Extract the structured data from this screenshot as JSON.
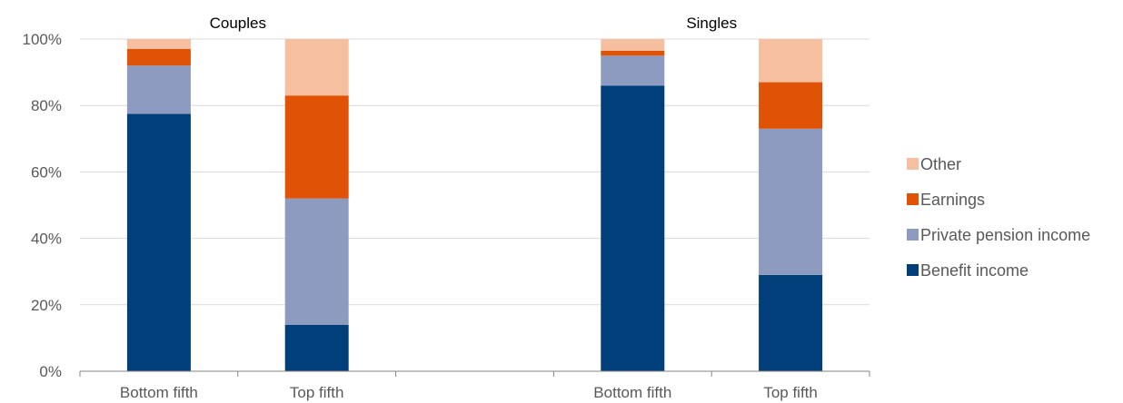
{
  "chart_data": {
    "type": "bar",
    "stacked": true,
    "panels": [
      {
        "title": "Couples",
        "categories": [
          "Bottom fifth",
          "Top fifth"
        ]
      },
      {
        "title": "Singles",
        "categories": [
          "Bottom fifth",
          "Top fifth"
        ]
      }
    ],
    "categories": [
      "Bottom fifth",
      "Top fifth",
      "Bottom fifth",
      "Top fifth"
    ],
    "series": [
      {
        "name": "Benefit income",
        "color": "#003f7a",
        "values": [
          77.5,
          14,
          86,
          29
        ]
      },
      {
        "name": "Private pension income",
        "color": "#8c9bbf",
        "values": [
          14.5,
          38,
          9,
          44
        ]
      },
      {
        "name": "Earnings",
        "color": "#e05206",
        "values": [
          5,
          31,
          1.5,
          14
        ]
      },
      {
        "name": "Other",
        "color": "#f5bfa0",
        "values": [
          3,
          17,
          3.5,
          13
        ]
      }
    ],
    "ylim": [
      0,
      100
    ],
    "yticks": [
      "0%",
      "20%",
      "40%",
      "60%",
      "80%",
      "100%"
    ],
    "xlabel": "",
    "ylabel": "",
    "grid": true,
    "legend_position": "right"
  }
}
